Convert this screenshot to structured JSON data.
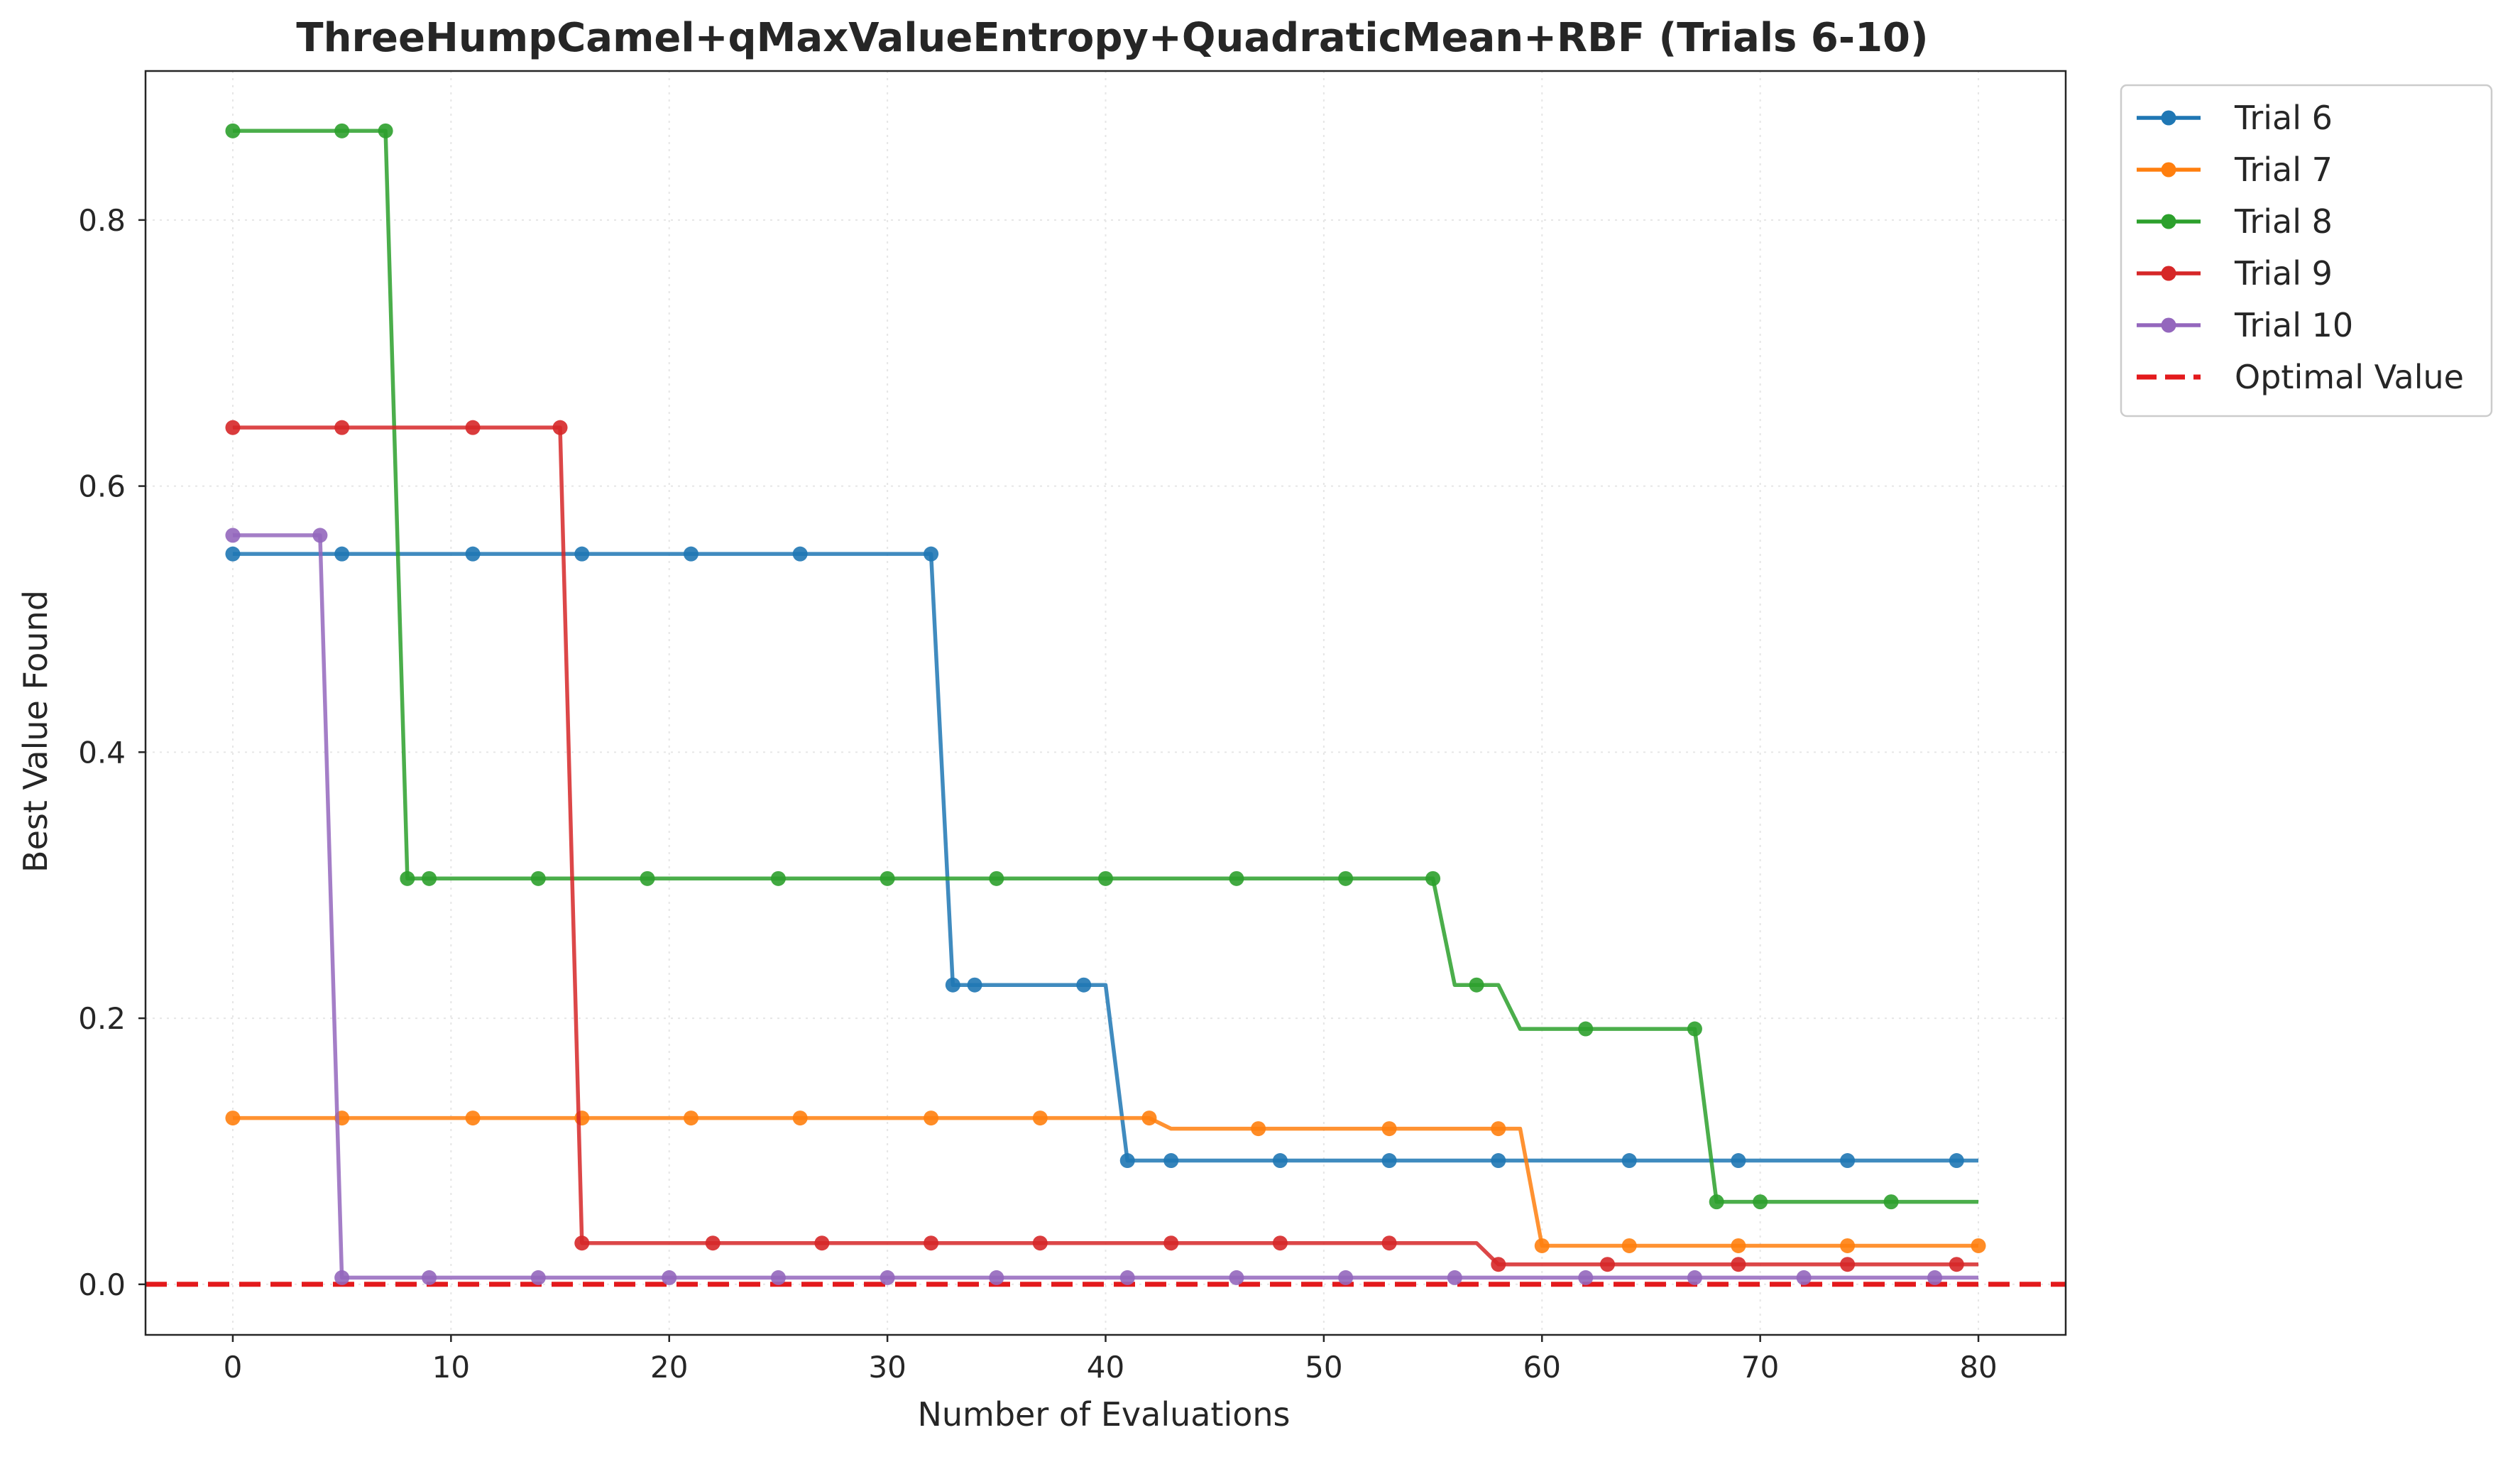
{
  "chart_data": {
    "type": "line",
    "title": "ThreeHumpCamel+qMaxValueEntropy+QuadraticMean+RBF (Trials 6-10)",
    "xlabel": "Number of Evaluations",
    "ylabel": "Best Value Found",
    "xlim": [
      -4,
      84
    ],
    "ylim": [
      -0.038,
      0.912
    ],
    "xticks": [
      0,
      10,
      20,
      30,
      40,
      50,
      60,
      70,
      80
    ],
    "yticks": [
      0.0,
      0.2,
      0.4,
      0.6,
      0.8
    ],
    "ytick_labels": [
      "0.0",
      "0.2",
      "0.4",
      "0.6",
      "0.8"
    ],
    "grid": true,
    "legend_position": "outside-top-right",
    "series": [
      {
        "name": "Trial 6",
        "color": "#1f77b4",
        "steps": [
          [
            0,
            0.549
          ],
          [
            33,
            0.225
          ],
          [
            41,
            0.093
          ]
        ],
        "markers": [
          0,
          5,
          11,
          16,
          21,
          26,
          32,
          33,
          34,
          39,
          41,
          43,
          48,
          53,
          58,
          64,
          69,
          74,
          79
        ]
      },
      {
        "name": "Trial 7",
        "color": "#ff7f0e",
        "steps": [
          [
            0,
            0.125
          ],
          [
            43,
            0.117
          ],
          [
            60,
            0.029
          ]
        ],
        "markers": [
          0,
          5,
          11,
          16,
          21,
          26,
          32,
          37,
          42,
          47,
          53,
          58,
          60,
          64,
          69,
          74,
          80
        ]
      },
      {
        "name": "Trial 8",
        "color": "#2ca02c",
        "steps": [
          [
            0,
            0.867
          ],
          [
            8,
            0.305
          ],
          [
            56,
            0.225
          ],
          [
            59,
            0.192
          ],
          [
            68,
            0.062
          ]
        ],
        "markers": [
          0,
          5,
          7,
          8,
          9,
          14,
          19,
          25,
          30,
          35,
          40,
          46,
          51,
          55,
          57,
          62,
          67,
          68,
          70,
          76
        ]
      },
      {
        "name": "Trial 9",
        "color": "#d62728",
        "steps": [
          [
            0,
            0.644
          ],
          [
            16,
            0.031
          ],
          [
            58,
            0.015
          ]
        ],
        "markers": [
          0,
          5,
          11,
          15,
          16,
          22,
          27,
          32,
          37,
          43,
          48,
          53,
          58,
          63,
          69,
          74,
          79
        ]
      },
      {
        "name": "Trial 10",
        "color": "#9467bd",
        "steps": [
          [
            0,
            0.563
          ],
          [
            5,
            0.005
          ]
        ],
        "markers": [
          0,
          4,
          5,
          9,
          14,
          20,
          25,
          30,
          35,
          41,
          46,
          51,
          56,
          62,
          67,
          72,
          78
        ]
      }
    ],
    "optimal": {
      "name": "Optimal Value",
      "value": 0.0,
      "color": "#e31a1c"
    }
  }
}
